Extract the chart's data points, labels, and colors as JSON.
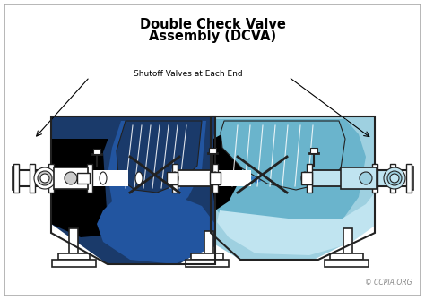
{
  "title_line1": "Double Check Valve",
  "title_line2": "Assembly (DCVA)",
  "annotation": "Shutoff Valves at Each End",
  "copyright": "© CCPIA.ORG",
  "bg_color": "#ffffff",
  "border_color": "#aaaaaa",
  "dark_blue": "#1a3a6a",
  "mid_blue": "#2255a0",
  "light_blue": "#6ab4cc",
  "pale_blue": "#9ed0e0",
  "very_pale_blue": "#c0e4f0",
  "black": "#000000",
  "dark_gray": "#444444",
  "gray": "#888888",
  "light_gray": "#cccccc",
  "white": "#ffffff",
  "arrow_blue": "#3377bb",
  "outline": "#222222"
}
